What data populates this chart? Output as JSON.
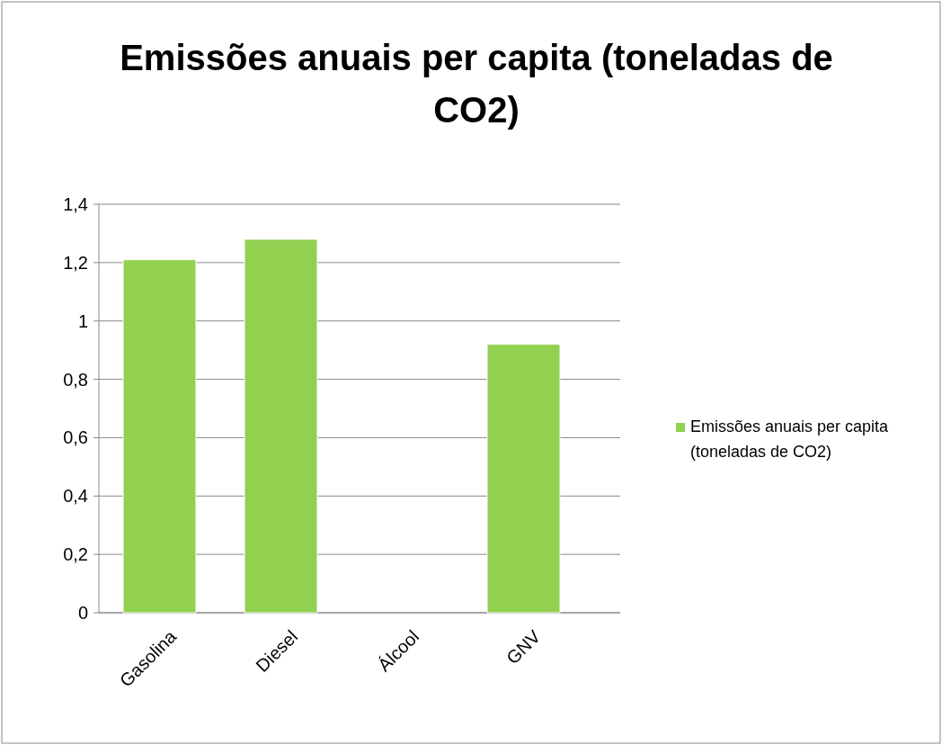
{
  "chart_data": {
    "type": "bar",
    "title": "Emissões anuais per capita (toneladas de CO2)",
    "categories": [
      "Gasolina",
      "Diesel",
      "Álcool",
      "GNV"
    ],
    "series": [
      {
        "name": "Emissões anuais per capita (toneladas de CO2)",
        "color": "#92d050",
        "values": [
          1.21,
          1.28,
          0,
          0.92
        ]
      }
    ],
    "ylim": [
      0,
      1.4
    ],
    "yticks": [
      0,
      {
        "value": 0.2,
        "label": "0,2"
      },
      {
        "value": 0.4,
        "label": "0,4"
      },
      {
        "value": 0.6,
        "label": "0,6"
      },
      {
        "value": 0.8,
        "label": "0,8"
      },
      1,
      {
        "value": 1.2,
        "label": "1,2"
      },
      {
        "value": 1.4,
        "label": "1,4"
      }
    ],
    "grid": "y",
    "legend": "right"
  }
}
